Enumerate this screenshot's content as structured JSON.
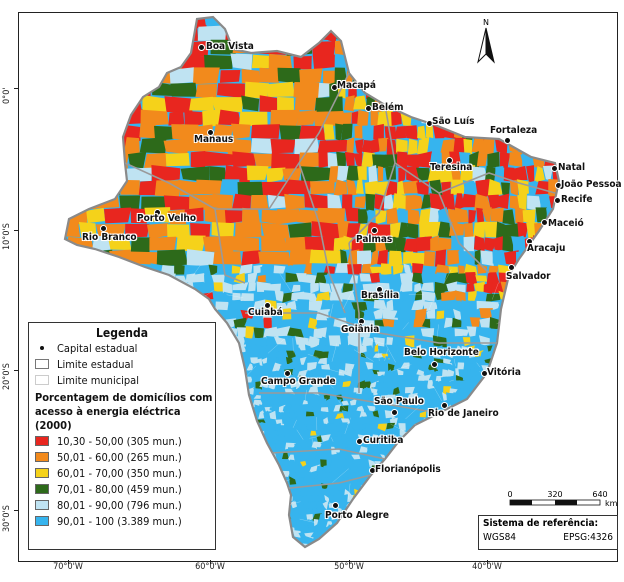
{
  "legend": {
    "title": "Legenda",
    "capital_label": "Capital estadual",
    "state_limit_label": "Limite estadual",
    "municipal_limit_label": "Limite municipal",
    "subtitle_line1": "Porcentagem de domicílios com",
    "subtitle_line2": "acesso à energia eléctrica (2000)",
    "classes": [
      {
        "label": "10,30 - 50,00 (305 mun.)",
        "color": "#e8261f"
      },
      {
        "label": "50,01 - 60,00 (265 mun.)",
        "color": "#f28a1c"
      },
      {
        "label": "60,01 - 70,00 (350 mun.)",
        "color": "#f5d21a"
      },
      {
        "label": "70,01 - 80,00 (459 mun.)",
        "color": "#2d6a1a"
      },
      {
        "label": "80,01 - 90,00 (796 mun.)",
        "color": "#bfe3f2"
      },
      {
        "label": "90,01 - 100 (3.389 mun.)",
        "color": "#36b4ee"
      }
    ]
  },
  "axes": {
    "x_ticks": [
      "70°0'W",
      "60°0'W",
      "50°0'W",
      "40°0'W"
    ],
    "y_ticks": [
      "0°0'",
      "10°0'S",
      "20°0'S",
      "30°0'S"
    ]
  },
  "north_label": "N",
  "scale": {
    "labels": [
      "0",
      "320",
      "640"
    ],
    "unit": "km"
  },
  "reference": {
    "title": "Sistema de referência:",
    "datum": "WGS84",
    "epsg": "EPSG:4326"
  },
  "cities": [
    {
      "name": "Boa Vista"
    },
    {
      "name": "Macapá"
    },
    {
      "name": "Belém"
    },
    {
      "name": "São Luís"
    },
    {
      "name": "Fortaleza"
    },
    {
      "name": "Manaus"
    },
    {
      "name": "Teresina"
    },
    {
      "name": "Natal"
    },
    {
      "name": "João Pessoa"
    },
    {
      "name": "Recife"
    },
    {
      "name": "Maceió"
    },
    {
      "name": "Porto Velho"
    },
    {
      "name": "Rio Branco"
    },
    {
      "name": "Palmas"
    },
    {
      "name": "Aracaju"
    },
    {
      "name": "Salvador"
    },
    {
      "name": "Brasília"
    },
    {
      "name": "Cuiabá"
    },
    {
      "name": "Goiânia"
    },
    {
      "name": "Belo Horizonte"
    },
    {
      "name": "Campo Grande"
    },
    {
      "name": "Vitória"
    },
    {
      "name": "São Paulo"
    },
    {
      "name": "Rio de Janeiro"
    },
    {
      "name": "Curitiba"
    },
    {
      "name": "Florianópolis"
    },
    {
      "name": "Porto Alegre"
    }
  ]
}
